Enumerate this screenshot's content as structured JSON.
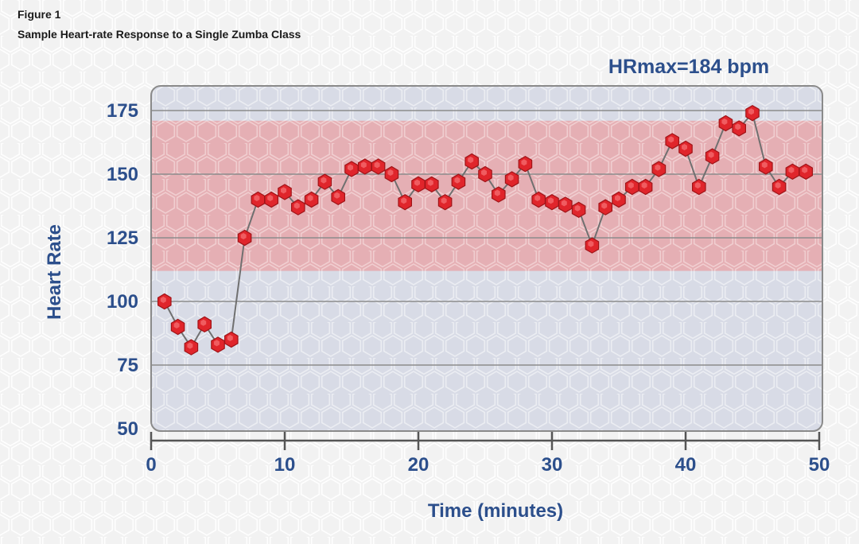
{
  "figure": {
    "label": "Figure 1",
    "title": "Sample Heart-rate Response to a Single Zumba Class"
  },
  "colors": {
    "axis_text": "#2c4f8c",
    "plot_bg": "#d8dbe6",
    "zone_band": "#e8a7aa",
    "marker": "#e0252b",
    "marker_edge": "#a01418",
    "line": "#707070",
    "grid": "#8c8c8c"
  },
  "chart_data": {
    "type": "line",
    "annotation": "HRmax=184 bpm",
    "xlabel": "Time (minutes)",
    "ylabel": "Heart Rate",
    "xlim": [
      0,
      50
    ],
    "ylim": [
      50,
      175
    ],
    "xticks": [
      0,
      10,
      20,
      30,
      40,
      50
    ],
    "yticks": [
      50,
      75,
      100,
      125,
      150,
      175
    ],
    "grid": true,
    "shaded_band": {
      "from": 112,
      "to": 171
    },
    "x": [
      1,
      2,
      3,
      4,
      5,
      6,
      7,
      8,
      9,
      10,
      11,
      12,
      13,
      14,
      15,
      16,
      17,
      18,
      19,
      20,
      21,
      22,
      23,
      24,
      25,
      26,
      27,
      28,
      29,
      30,
      31,
      32,
      33,
      34,
      35,
      36,
      37,
      38,
      39,
      40,
      41,
      42,
      43,
      44,
      45,
      46,
      47,
      48,
      49
    ],
    "y": [
      100,
      90,
      82,
      91,
      83,
      85,
      125,
      140,
      140,
      143,
      137,
      140,
      147,
      141,
      152,
      153,
      153,
      150,
      139,
      146,
      146,
      139,
      147,
      155,
      150,
      142,
      148,
      154,
      140,
      139,
      138,
      136,
      122,
      137,
      140,
      145,
      145,
      152,
      163,
      160,
      145,
      157,
      170,
      168,
      174,
      153,
      145,
      151,
      151
    ]
  }
}
